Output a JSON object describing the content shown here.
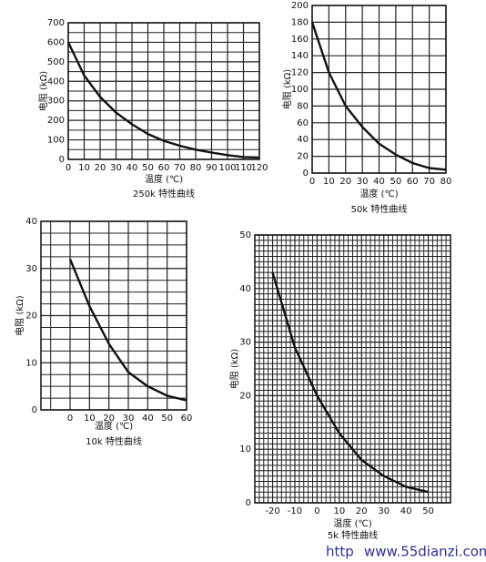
{
  "chart_data": [
    {
      "type": "line",
      "title": "250k 特性曲线",
      "x_label": "温度 (℃)",
      "y_label": "电阻 (kΩ)",
      "x": [
        0,
        10,
        20,
        30,
        40,
        50,
        60,
        70,
        80,
        90,
        100,
        110,
        120
      ],
      "values": [
        600,
        430,
        320,
        240,
        180,
        130,
        95,
        70,
        50,
        35,
        22,
        12,
        10
      ],
      "color": "#111111",
      "xlim": [
        0,
        120
      ],
      "ylim": [
        0,
        700
      ],
      "xticks": [
        0,
        10,
        20,
        30,
        40,
        50,
        60,
        70,
        80,
        90,
        100,
        110,
        120
      ],
      "yticks": [
        0,
        100,
        200,
        300,
        400,
        500,
        600,
        700
      ],
      "grid": true,
      "grid_divisions": [
        1,
        2
      ]
    },
    {
      "type": "line",
      "title": "50k 特性曲线",
      "x_label": "温度 (℃)",
      "y_label": "电阻 (kΩ)",
      "x": [
        0,
        10,
        20,
        30,
        40,
        50,
        60,
        70,
        80
      ],
      "values": [
        180,
        120,
        80,
        55,
        35,
        22,
        12,
        6,
        4
      ],
      "color": "#111111",
      "xlim": [
        0,
        80
      ],
      "ylim": [
        0,
        200
      ],
      "xticks": [
        0,
        10,
        20,
        30,
        40,
        50,
        60,
        70,
        80
      ],
      "yticks": [
        0,
        20,
        40,
        60,
        80,
        100,
        120,
        140,
        160,
        180,
        200
      ],
      "grid": true,
      "grid_divisions": [
        1,
        1
      ]
    },
    {
      "type": "line",
      "title": "10k 特性曲线",
      "x_label": "温度 (℃)",
      "y_label": "电阻 (kΩ)",
      "x": [
        0,
        10,
        20,
        30,
        40,
        50,
        60
      ],
      "values": [
        32,
        22,
        14,
        8,
        5,
        3,
        2
      ],
      "color": "#111111",
      "xlim": [
        -15,
        60
      ],
      "ylim": [
        0,
        40
      ],
      "xticks": [
        0,
        10,
        20,
        30,
        40,
        50,
        60
      ],
      "yticks": [
        0,
        10,
        20,
        30,
        40
      ],
      "grid": true,
      "grid_divisions": [
        1,
        4
      ]
    },
    {
      "type": "line",
      "title": "5k 特性曲线",
      "x_label": "温度 (℃)",
      "y_label": "电阻 (kΩ)",
      "x": [
        -20,
        -10,
        0,
        10,
        20,
        30,
        40,
        50
      ],
      "values": [
        43,
        29,
        20,
        13,
        8,
        5,
        3,
        2
      ],
      "color": "#111111",
      "xlim": [
        -28,
        60
      ],
      "ylim": [
        0,
        50
      ],
      "xticks": [
        -20,
        -10,
        0,
        10,
        20,
        30,
        40,
        50
      ],
      "yticks": [
        0,
        10,
        20,
        30,
        40,
        50
      ],
      "grid": true,
      "grid_divisions": [
        5,
        10
      ]
    }
  ],
  "watermark": {
    "prefix": "http",
    "site": "www.55dianzi.com"
  }
}
